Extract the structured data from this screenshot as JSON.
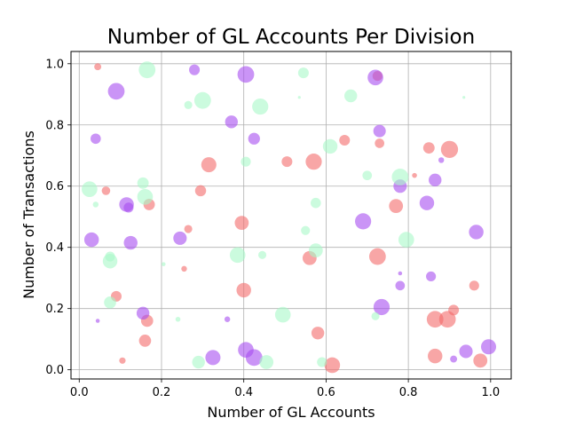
{
  "chart_data": {
    "type": "scatter",
    "title": "Number of GL Accounts Per Division",
    "xlabel": "Number of GL Accounts",
    "ylabel": "Number of Transactions",
    "xlim": [
      -0.02,
      1.05
    ],
    "ylim": [
      -0.03,
      1.04
    ],
    "xticks": [
      0.0,
      0.2,
      0.4,
      0.6,
      0.8,
      1.0
    ],
    "xtick_labels": [
      "0.0",
      "0.2",
      "0.4",
      "0.6",
      "0.8",
      "1.0"
    ],
    "yticks": [
      0.0,
      0.2,
      0.4,
      0.6,
      0.8,
      1.0
    ],
    "ytick_labels": [
      "0.0",
      "0.2",
      "0.4",
      "0.6",
      "0.8",
      "1.0"
    ],
    "grid": true,
    "legend": "none",
    "colors": {
      "salmon": "#f46a6a",
      "purple": "#a64df0",
      "mint": "#a8f8c8"
    },
    "series": [
      {
        "color_key": "salmon",
        "points": [
          {
            "x": 0.045,
            "y": 0.99,
            "s": 30
          },
          {
            "x": 0.065,
            "y": 0.585,
            "s": 45
          },
          {
            "x": 0.09,
            "y": 0.24,
            "s": 70
          },
          {
            "x": 0.105,
            "y": 0.03,
            "s": 25
          },
          {
            "x": 0.165,
            "y": 0.16,
            "s": 90
          },
          {
            "x": 0.16,
            "y": 0.095,
            "s": 90
          },
          {
            "x": 0.17,
            "y": 0.54,
            "s": 80
          },
          {
            "x": 0.255,
            "y": 0.33,
            "s": 20
          },
          {
            "x": 0.265,
            "y": 0.46,
            "s": 40
          },
          {
            "x": 0.295,
            "y": 0.585,
            "s": 75
          },
          {
            "x": 0.315,
            "y": 0.67,
            "s": 140
          },
          {
            "x": 0.395,
            "y": 0.48,
            "s": 120
          },
          {
            "x": 0.4,
            "y": 0.26,
            "s": 130
          },
          {
            "x": 0.505,
            "y": 0.68,
            "s": 70
          },
          {
            "x": 0.56,
            "y": 0.365,
            "s": 120
          },
          {
            "x": 0.57,
            "y": 0.68,
            "s": 160
          },
          {
            "x": 0.58,
            "y": 0.12,
            "s": 100
          },
          {
            "x": 0.615,
            "y": 0.015,
            "s": 150
          },
          {
            "x": 0.645,
            "y": 0.75,
            "s": 70
          },
          {
            "x": 0.725,
            "y": 0.37,
            "s": 170
          },
          {
            "x": 0.725,
            "y": 0.96,
            "s": 60
          },
          {
            "x": 0.73,
            "y": 0.74,
            "s": 55
          },
          {
            "x": 0.77,
            "y": 0.535,
            "s": 120
          },
          {
            "x": 0.815,
            "y": 0.635,
            "s": 15
          },
          {
            "x": 0.85,
            "y": 0.725,
            "s": 80
          },
          {
            "x": 0.865,
            "y": 0.165,
            "s": 170
          },
          {
            "x": 0.865,
            "y": 0.045,
            "s": 130
          },
          {
            "x": 0.895,
            "y": 0.165,
            "s": 170
          },
          {
            "x": 0.9,
            "y": 0.72,
            "s": 180
          },
          {
            "x": 0.91,
            "y": 0.195,
            "s": 70
          },
          {
            "x": 0.96,
            "y": 0.275,
            "s": 60
          },
          {
            "x": 0.975,
            "y": 0.03,
            "s": 120
          }
        ]
      },
      {
        "color_key": "purple",
        "points": [
          {
            "x": 0.03,
            "y": 0.425,
            "s": 130
          },
          {
            "x": 0.04,
            "y": 0.755,
            "s": 65
          },
          {
            "x": 0.045,
            "y": 0.16,
            "s": 10
          },
          {
            "x": 0.09,
            "y": 0.91,
            "s": 170
          },
          {
            "x": 0.115,
            "y": 0.54,
            "s": 130
          },
          {
            "x": 0.12,
            "y": 0.53,
            "s": 60
          },
          {
            "x": 0.125,
            "y": 0.415,
            "s": 115
          },
          {
            "x": 0.155,
            "y": 0.185,
            "s": 100
          },
          {
            "x": 0.245,
            "y": 0.43,
            "s": 110
          },
          {
            "x": 0.28,
            "y": 0.98,
            "s": 70
          },
          {
            "x": 0.325,
            "y": 0.04,
            "s": 140
          },
          {
            "x": 0.36,
            "y": 0.165,
            "s": 20
          },
          {
            "x": 0.37,
            "y": 0.81,
            "s": 100
          },
          {
            "x": 0.405,
            "y": 0.965,
            "s": 170
          },
          {
            "x": 0.405,
            "y": 0.065,
            "s": 150
          },
          {
            "x": 0.425,
            "y": 0.04,
            "s": 170
          },
          {
            "x": 0.425,
            "y": 0.755,
            "s": 85
          },
          {
            "x": 0.69,
            "y": 0.485,
            "s": 160
          },
          {
            "x": 0.72,
            "y": 0.955,
            "s": 150
          },
          {
            "x": 0.73,
            "y": 0.78,
            "s": 95
          },
          {
            "x": 0.735,
            "y": 0.205,
            "s": 160
          },
          {
            "x": 0.78,
            "y": 0.6,
            "s": 110
          },
          {
            "x": 0.78,
            "y": 0.275,
            "s": 55
          },
          {
            "x": 0.78,
            "y": 0.315,
            "s": 10
          },
          {
            "x": 0.845,
            "y": 0.545,
            "s": 130
          },
          {
            "x": 0.855,
            "y": 0.305,
            "s": 60
          },
          {
            "x": 0.865,
            "y": 0.62,
            "s": 100
          },
          {
            "x": 0.88,
            "y": 0.685,
            "s": 20
          },
          {
            "x": 0.91,
            "y": 0.035,
            "s": 30
          },
          {
            "x": 0.94,
            "y": 0.06,
            "s": 110
          },
          {
            "x": 0.965,
            "y": 0.45,
            "s": 130
          },
          {
            "x": 0.995,
            "y": 0.075,
            "s": 140
          }
        ]
      },
      {
        "color_key": "mint",
        "points": [
          {
            "x": 0.025,
            "y": 0.59,
            "s": 150
          },
          {
            "x": 0.04,
            "y": 0.54,
            "s": 20
          },
          {
            "x": 0.075,
            "y": 0.37,
            "s": 60
          },
          {
            "x": 0.075,
            "y": 0.355,
            "s": 130
          },
          {
            "x": 0.075,
            "y": 0.22,
            "s": 90
          },
          {
            "x": 0.155,
            "y": 0.61,
            "s": 80
          },
          {
            "x": 0.16,
            "y": 0.565,
            "s": 150
          },
          {
            "x": 0.165,
            "y": 0.98,
            "s": 170
          },
          {
            "x": 0.205,
            "y": 0.345,
            "s": 10
          },
          {
            "x": 0.24,
            "y": 0.165,
            "s": 15
          },
          {
            "x": 0.265,
            "y": 0.865,
            "s": 40
          },
          {
            "x": 0.29,
            "y": 0.025,
            "s": 100
          },
          {
            "x": 0.3,
            "y": 0.88,
            "s": 170
          },
          {
            "x": 0.385,
            "y": 0.375,
            "s": 150
          },
          {
            "x": 0.405,
            "y": 0.68,
            "s": 60
          },
          {
            "x": 0.44,
            "y": 0.86,
            "s": 160
          },
          {
            "x": 0.445,
            "y": 0.375,
            "s": 40
          },
          {
            "x": 0.455,
            "y": 0.025,
            "s": 120
          },
          {
            "x": 0.495,
            "y": 0.18,
            "s": 150
          },
          {
            "x": 0.535,
            "y": 0.89,
            "s": 5
          },
          {
            "x": 0.545,
            "y": 0.97,
            "s": 70
          },
          {
            "x": 0.55,
            "y": 0.455,
            "s": 50
          },
          {
            "x": 0.575,
            "y": 0.545,
            "s": 65
          },
          {
            "x": 0.575,
            "y": 0.39,
            "s": 120
          },
          {
            "x": 0.59,
            "y": 0.025,
            "s": 60
          },
          {
            "x": 0.61,
            "y": 0.73,
            "s": 130
          },
          {
            "x": 0.66,
            "y": 0.895,
            "s": 100
          },
          {
            "x": 0.7,
            "y": 0.635,
            "s": 55
          },
          {
            "x": 0.72,
            "y": 0.175,
            "s": 40
          },
          {
            "x": 0.78,
            "y": 0.63,
            "s": 170
          },
          {
            "x": 0.795,
            "y": 0.425,
            "s": 150
          },
          {
            "x": 0.935,
            "y": 0.89,
            "s": 5
          }
        ]
      }
    ]
  }
}
